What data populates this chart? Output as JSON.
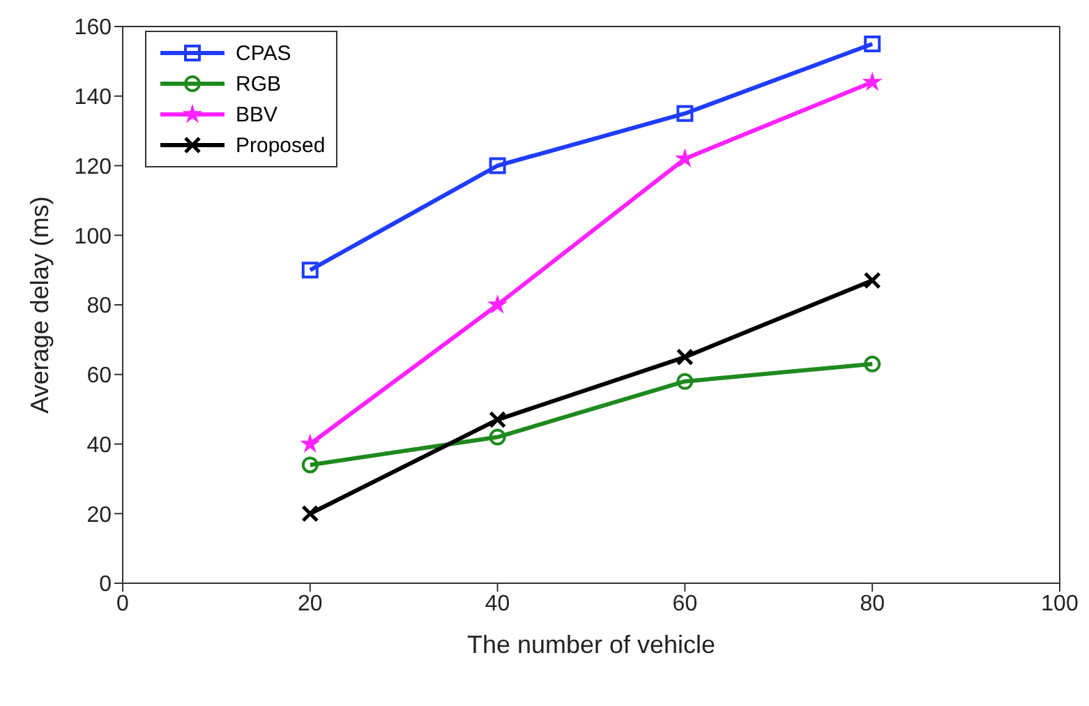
{
  "chart_data": {
    "type": "line",
    "xlabel": "The number of vehicle",
    "ylabel": "Average delay (ms)",
    "x": [
      20,
      40,
      60,
      80
    ],
    "series": [
      {
        "name": "CPAS",
        "color": "#1f3cff",
        "marker": "square",
        "values": [
          90,
          120,
          135,
          155
        ]
      },
      {
        "name": "RGB",
        "color": "#1e8a1e",
        "marker": "circle",
        "values": [
          34,
          42,
          58,
          63
        ]
      },
      {
        "name": "BBV",
        "color": "#ff22ff",
        "marker": "star",
        "values": [
          40,
          80,
          122,
          144
        ]
      },
      {
        "name": "Proposed",
        "color": "#000000",
        "marker": "cross",
        "values": [
          20,
          47,
          65,
          87
        ]
      }
    ],
    "xlim": [
      0,
      100
    ],
    "xticks": [
      0,
      20,
      40,
      60,
      80,
      100
    ],
    "ylim": [
      0,
      160
    ],
    "yticks": [
      0,
      20,
      40,
      60,
      80,
      100,
      120,
      140,
      160
    ],
    "grid": false,
    "legend": "top left",
    "line_style": "solid"
  }
}
